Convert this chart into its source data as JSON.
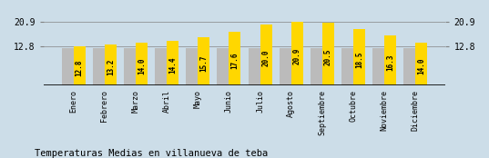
{
  "categories": [
    "Enero",
    "Febrero",
    "Marzo",
    "Abril",
    "Mayo",
    "Junio",
    "Julio",
    "Agosto",
    "Septiembre",
    "Octubre",
    "Noviembre",
    "Diciembre"
  ],
  "values": [
    12.8,
    13.2,
    14.0,
    14.4,
    15.7,
    17.6,
    20.0,
    20.9,
    20.5,
    18.5,
    16.3,
    14.0
  ],
  "gray_values": [
    12.2,
    12.2,
    12.2,
    12.2,
    12.2,
    12.2,
    12.2,
    12.2,
    12.2,
    12.2,
    12.2,
    12.2
  ],
  "bar_color_yellow": "#FFD700",
  "bar_color_gray": "#BBBBBB",
  "background_color": "#CCDDE8",
  "title": "Temperaturas Medias en villanueva de teba",
  "yticks": [
    12.8,
    20.9
  ],
  "ylim_min": 0,
  "ylim_max": 23.5,
  "value_label_fontsize": 5.5,
  "title_fontsize": 7.5,
  "axis_label_fontsize": 6.0,
  "bar_width": 0.38
}
